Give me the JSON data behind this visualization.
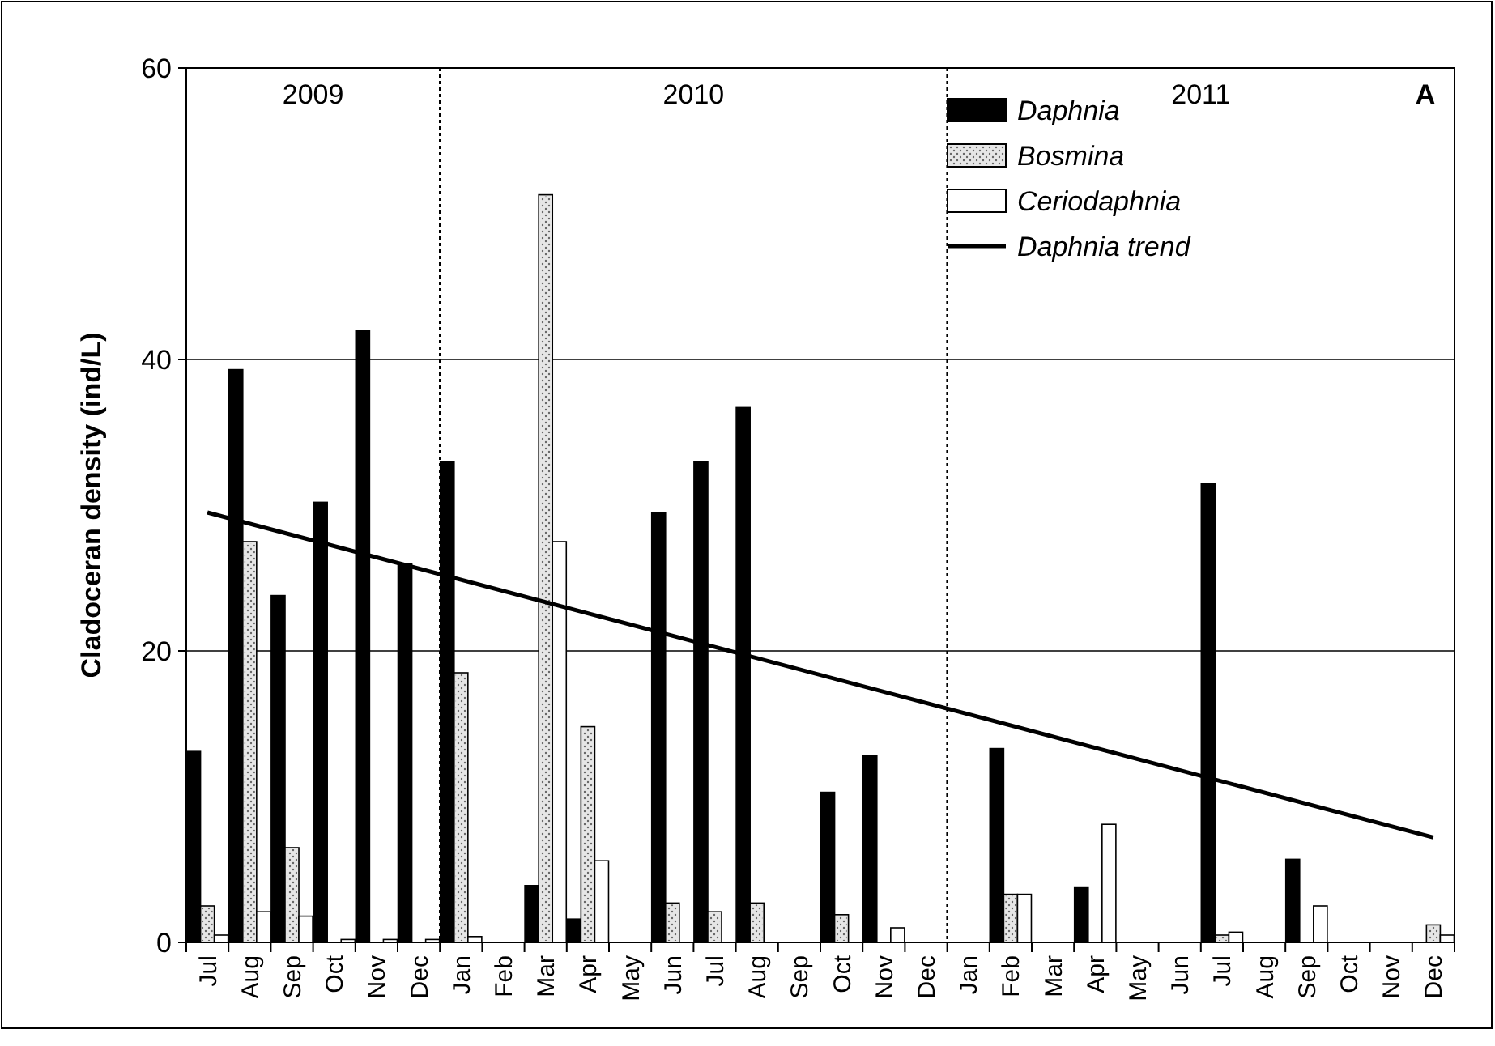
{
  "chart_data": {
    "type": "bar",
    "ylabel": "Cladoceran density (ind/L)",
    "categories": [
      "Jul",
      "Aug",
      "Sep",
      "Oct",
      "Nov",
      "Dec",
      "Jan",
      "Feb",
      "Mar",
      "Apr",
      "May",
      "Jun",
      "Jul",
      "Aug",
      "Sep",
      "Oct",
      "Nov",
      "Dec",
      "Jan",
      "Feb",
      "Mar",
      "Apr",
      "May",
      "Jun",
      "Jul",
      "Aug",
      "Sep",
      "Oct",
      "Nov",
      "Dec"
    ],
    "series": [
      {
        "name": "Daphnia",
        "color": "#000000",
        "values": [
          13.1,
          39.3,
          23.8,
          30.2,
          42,
          26,
          33,
          0,
          3.9,
          1.6,
          0,
          29.5,
          33,
          36.7,
          0,
          10.3,
          12.8,
          0,
          0,
          13.3,
          0,
          3.8,
          0,
          0,
          31.5,
          0,
          5.7,
          0,
          0,
          0
        ]
      },
      {
        "name": "Bosmina",
        "color": "#e6e6e6",
        "values": [
          2.5,
          27.5,
          6.5,
          0,
          0,
          0,
          18.5,
          0,
          51.3,
          14.8,
          0,
          2.7,
          2.1,
          2.7,
          0,
          1.9,
          0,
          0,
          0,
          3.3,
          0,
          0,
          0,
          0,
          0.5,
          0,
          0,
          0,
          0,
          1.2
        ]
      },
      {
        "name": "Ceriodaphnia",
        "color": "#ffffff",
        "values": [
          0.5,
          2.1,
          1.8,
          0.2,
          0.2,
          0.2,
          0.4,
          0,
          27.5,
          5.6,
          0,
          0,
          0,
          0,
          0,
          0,
          1,
          0,
          0,
          3.3,
          0,
          8.1,
          0,
          0,
          0.7,
          0,
          2.5,
          0,
          0,
          0.5
        ]
      },
      {
        "name": "Daphnia trend",
        "type": "line",
        "color": "#000000",
        "values": [
          29.5,
          null,
          null,
          null,
          null,
          null,
          null,
          null,
          null,
          null,
          null,
          null,
          null,
          null,
          null,
          null,
          null,
          null,
          null,
          null,
          null,
          null,
          null,
          null,
          null,
          null,
          null,
          null,
          null,
          7.2
        ]
      }
    ],
    "ylim": [
      0,
      60
    ],
    "yticks": [
      0,
      20,
      40,
      60
    ],
    "grid": "y",
    "legend": "top right",
    "annotations": [
      "2009",
      "2010",
      "2011",
      "A"
    ]
  }
}
